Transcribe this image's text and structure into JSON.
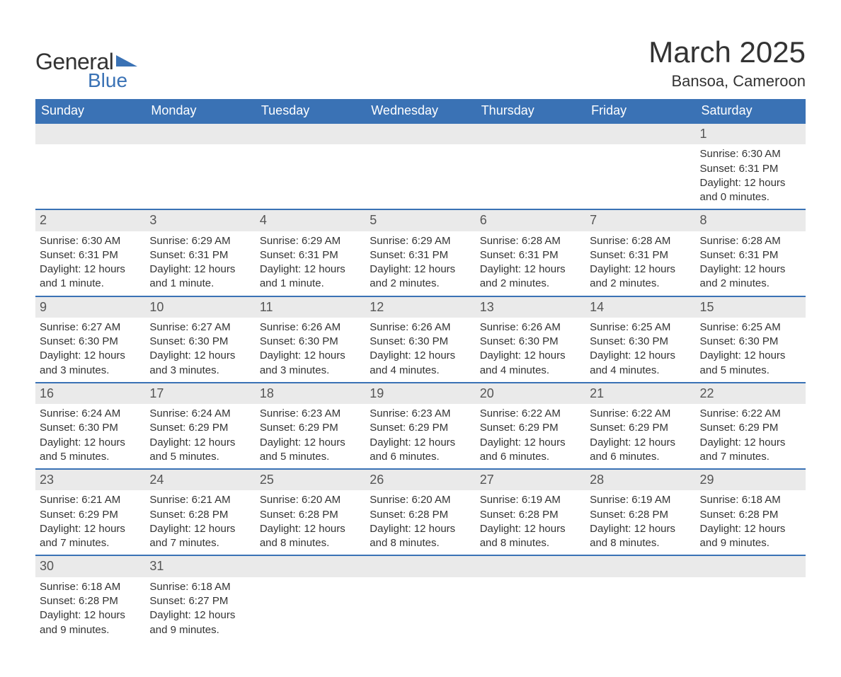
{
  "logo": {
    "text_general": "General",
    "text_blue": "Blue",
    "shape_color": "#3a72b5"
  },
  "title": "March 2025",
  "location": "Bansoa, Cameroon",
  "colors": {
    "header_bg": "#3a72b5",
    "header_text": "#ffffff",
    "daynum_bg": "#eaeaea",
    "row_divider": "#3a72b5",
    "body_text": "#333333",
    "page_bg": "#ffffff"
  },
  "fonts": {
    "title_size_pt": 32,
    "location_size_pt": 17,
    "header_size_pt": 14,
    "daynum_size_pt": 14,
    "detail_size_pt": 11
  },
  "day_headers": [
    "Sunday",
    "Monday",
    "Tuesday",
    "Wednesday",
    "Thursday",
    "Friday",
    "Saturday"
  ],
  "weeks": [
    [
      null,
      null,
      null,
      null,
      null,
      null,
      {
        "n": "1",
        "sunrise": "Sunrise: 6:30 AM",
        "sunset": "Sunset: 6:31 PM",
        "daylight1": "Daylight: 12 hours",
        "daylight2": "and 0 minutes."
      }
    ],
    [
      {
        "n": "2",
        "sunrise": "Sunrise: 6:30 AM",
        "sunset": "Sunset: 6:31 PM",
        "daylight1": "Daylight: 12 hours",
        "daylight2": "and 1 minute."
      },
      {
        "n": "3",
        "sunrise": "Sunrise: 6:29 AM",
        "sunset": "Sunset: 6:31 PM",
        "daylight1": "Daylight: 12 hours",
        "daylight2": "and 1 minute."
      },
      {
        "n": "4",
        "sunrise": "Sunrise: 6:29 AM",
        "sunset": "Sunset: 6:31 PM",
        "daylight1": "Daylight: 12 hours",
        "daylight2": "and 1 minute."
      },
      {
        "n": "5",
        "sunrise": "Sunrise: 6:29 AM",
        "sunset": "Sunset: 6:31 PM",
        "daylight1": "Daylight: 12 hours",
        "daylight2": "and 2 minutes."
      },
      {
        "n": "6",
        "sunrise": "Sunrise: 6:28 AM",
        "sunset": "Sunset: 6:31 PM",
        "daylight1": "Daylight: 12 hours",
        "daylight2": "and 2 minutes."
      },
      {
        "n": "7",
        "sunrise": "Sunrise: 6:28 AM",
        "sunset": "Sunset: 6:31 PM",
        "daylight1": "Daylight: 12 hours",
        "daylight2": "and 2 minutes."
      },
      {
        "n": "8",
        "sunrise": "Sunrise: 6:28 AM",
        "sunset": "Sunset: 6:31 PM",
        "daylight1": "Daylight: 12 hours",
        "daylight2": "and 2 minutes."
      }
    ],
    [
      {
        "n": "9",
        "sunrise": "Sunrise: 6:27 AM",
        "sunset": "Sunset: 6:30 PM",
        "daylight1": "Daylight: 12 hours",
        "daylight2": "and 3 minutes."
      },
      {
        "n": "10",
        "sunrise": "Sunrise: 6:27 AM",
        "sunset": "Sunset: 6:30 PM",
        "daylight1": "Daylight: 12 hours",
        "daylight2": "and 3 minutes."
      },
      {
        "n": "11",
        "sunrise": "Sunrise: 6:26 AM",
        "sunset": "Sunset: 6:30 PM",
        "daylight1": "Daylight: 12 hours",
        "daylight2": "and 3 minutes."
      },
      {
        "n": "12",
        "sunrise": "Sunrise: 6:26 AM",
        "sunset": "Sunset: 6:30 PM",
        "daylight1": "Daylight: 12 hours",
        "daylight2": "and 4 minutes."
      },
      {
        "n": "13",
        "sunrise": "Sunrise: 6:26 AM",
        "sunset": "Sunset: 6:30 PM",
        "daylight1": "Daylight: 12 hours",
        "daylight2": "and 4 minutes."
      },
      {
        "n": "14",
        "sunrise": "Sunrise: 6:25 AM",
        "sunset": "Sunset: 6:30 PM",
        "daylight1": "Daylight: 12 hours",
        "daylight2": "and 4 minutes."
      },
      {
        "n": "15",
        "sunrise": "Sunrise: 6:25 AM",
        "sunset": "Sunset: 6:30 PM",
        "daylight1": "Daylight: 12 hours",
        "daylight2": "and 5 minutes."
      }
    ],
    [
      {
        "n": "16",
        "sunrise": "Sunrise: 6:24 AM",
        "sunset": "Sunset: 6:30 PM",
        "daylight1": "Daylight: 12 hours",
        "daylight2": "and 5 minutes."
      },
      {
        "n": "17",
        "sunrise": "Sunrise: 6:24 AM",
        "sunset": "Sunset: 6:29 PM",
        "daylight1": "Daylight: 12 hours",
        "daylight2": "and 5 minutes."
      },
      {
        "n": "18",
        "sunrise": "Sunrise: 6:23 AM",
        "sunset": "Sunset: 6:29 PM",
        "daylight1": "Daylight: 12 hours",
        "daylight2": "and 5 minutes."
      },
      {
        "n": "19",
        "sunrise": "Sunrise: 6:23 AM",
        "sunset": "Sunset: 6:29 PM",
        "daylight1": "Daylight: 12 hours",
        "daylight2": "and 6 minutes."
      },
      {
        "n": "20",
        "sunrise": "Sunrise: 6:22 AM",
        "sunset": "Sunset: 6:29 PM",
        "daylight1": "Daylight: 12 hours",
        "daylight2": "and 6 minutes."
      },
      {
        "n": "21",
        "sunrise": "Sunrise: 6:22 AM",
        "sunset": "Sunset: 6:29 PM",
        "daylight1": "Daylight: 12 hours",
        "daylight2": "and 6 minutes."
      },
      {
        "n": "22",
        "sunrise": "Sunrise: 6:22 AM",
        "sunset": "Sunset: 6:29 PM",
        "daylight1": "Daylight: 12 hours",
        "daylight2": "and 7 minutes."
      }
    ],
    [
      {
        "n": "23",
        "sunrise": "Sunrise: 6:21 AM",
        "sunset": "Sunset: 6:29 PM",
        "daylight1": "Daylight: 12 hours",
        "daylight2": "and 7 minutes."
      },
      {
        "n": "24",
        "sunrise": "Sunrise: 6:21 AM",
        "sunset": "Sunset: 6:28 PM",
        "daylight1": "Daylight: 12 hours",
        "daylight2": "and 7 minutes."
      },
      {
        "n": "25",
        "sunrise": "Sunrise: 6:20 AM",
        "sunset": "Sunset: 6:28 PM",
        "daylight1": "Daylight: 12 hours",
        "daylight2": "and 8 minutes."
      },
      {
        "n": "26",
        "sunrise": "Sunrise: 6:20 AM",
        "sunset": "Sunset: 6:28 PM",
        "daylight1": "Daylight: 12 hours",
        "daylight2": "and 8 minutes."
      },
      {
        "n": "27",
        "sunrise": "Sunrise: 6:19 AM",
        "sunset": "Sunset: 6:28 PM",
        "daylight1": "Daylight: 12 hours",
        "daylight2": "and 8 minutes."
      },
      {
        "n": "28",
        "sunrise": "Sunrise: 6:19 AM",
        "sunset": "Sunset: 6:28 PM",
        "daylight1": "Daylight: 12 hours",
        "daylight2": "and 8 minutes."
      },
      {
        "n": "29",
        "sunrise": "Sunrise: 6:18 AM",
        "sunset": "Sunset: 6:28 PM",
        "daylight1": "Daylight: 12 hours",
        "daylight2": "and 9 minutes."
      }
    ],
    [
      {
        "n": "30",
        "sunrise": "Sunrise: 6:18 AM",
        "sunset": "Sunset: 6:28 PM",
        "daylight1": "Daylight: 12 hours",
        "daylight2": "and 9 minutes."
      },
      {
        "n": "31",
        "sunrise": "Sunrise: 6:18 AM",
        "sunset": "Sunset: 6:27 PM",
        "daylight1": "Daylight: 12 hours",
        "daylight2": "and 9 minutes."
      },
      null,
      null,
      null,
      null,
      null
    ]
  ]
}
